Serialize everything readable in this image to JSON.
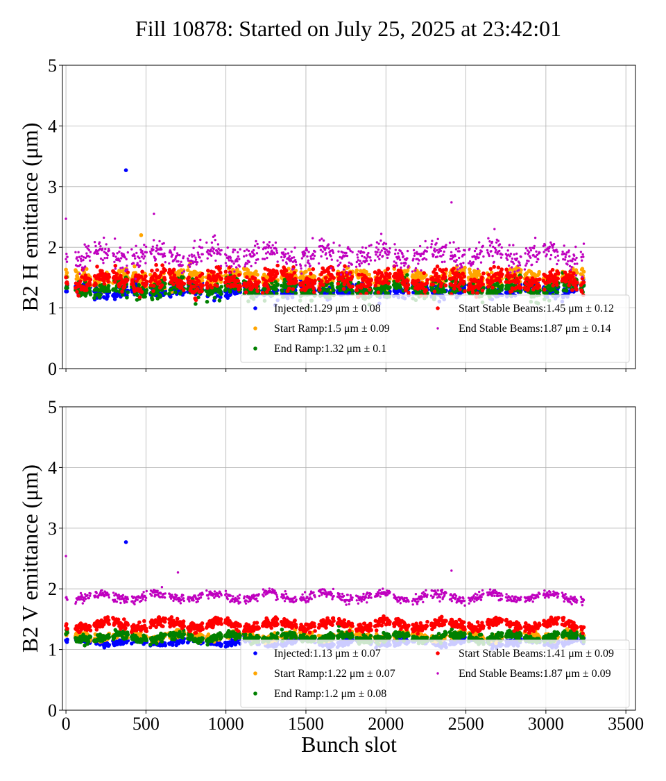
{
  "title": "Fill 10878: Started on July 25, 2025 at 23:42:01",
  "chart_data": [
    {
      "type": "scatter",
      "ylabel": "B2 H emittance (μm)",
      "xlabel": "",
      "xlim": [
        -22,
        3560
      ],
      "ylim": [
        0,
        5
      ],
      "xticks": [
        0,
        500,
        1000,
        1500,
        2000,
        2500,
        3000,
        3500
      ],
      "yticks": [
        0,
        1,
        2,
        3,
        4,
        5
      ],
      "grid": true,
      "legend_position": "lower-right",
      "bunch_slot_range": [
        0,
        3240
      ],
      "series": [
        {
          "name": "Injected",
          "legend": "Injected:1.29 μm ± 0.08",
          "mean": 1.29,
          "std": 0.08,
          "color": "#0000ff",
          "outliers": [
            [
              375,
              3.27
            ]
          ]
        },
        {
          "name": "Start Ramp",
          "legend": "Start Ramp:1.5 μm ± 0.09",
          "mean": 1.5,
          "std": 0.09,
          "color": "#ffa500",
          "outliers": [
            [
              470,
              2.2
            ]
          ]
        },
        {
          "name": "End Ramp",
          "legend": "End Ramp:1.32 μm ± 0.1",
          "mean": 1.32,
          "std": 0.1,
          "color": "#008000",
          "outliers": []
        },
        {
          "name": "Start Stable Beams",
          "legend": "Start Stable Beams:1.45 μm ± 0.12",
          "mean": 1.45,
          "std": 0.12,
          "color": "#ff0000",
          "outliers": []
        },
        {
          "name": "End Stable Beams",
          "legend": "End Stable Beams:1.87 μm ± 0.14",
          "mean": 1.87,
          "std": 0.14,
          "color": "#bf00bf",
          "outliers": [
            [
              0,
              2.47
            ],
            [
              2410,
              2.74
            ],
            [
              550,
              2.55
            ]
          ]
        }
      ]
    },
    {
      "type": "scatter",
      "ylabel": "B2 V emittance (μm)",
      "xlabel": "Bunch slot",
      "xlim": [
        -22,
        3560
      ],
      "ylim": [
        0,
        5
      ],
      "xticks": [
        0,
        500,
        1000,
        1500,
        2000,
        2500,
        3000,
        3500
      ],
      "yticks": [
        0,
        1,
        2,
        3,
        4,
        5
      ],
      "grid": true,
      "legend_position": "lower-right",
      "bunch_slot_range": [
        0,
        3240
      ],
      "series": [
        {
          "name": "Injected",
          "legend": "Injected:1.13 μm ± 0.07",
          "mean": 1.13,
          "std": 0.07,
          "color": "#0000ff",
          "outliers": [
            [
              375,
              2.77
            ]
          ]
        },
        {
          "name": "Start Ramp",
          "legend": "Start Ramp:1.22 μm ± 0.07",
          "mean": 1.22,
          "std": 0.07,
          "color": "#ffa500",
          "outliers": []
        },
        {
          "name": "End Ramp",
          "legend": "End Ramp:1.2 μm ± 0.08",
          "mean": 1.2,
          "std": 0.08,
          "color": "#008000",
          "outliers": []
        },
        {
          "name": "Start Stable Beams",
          "legend": "Start Stable Beams:1.41 μm ± 0.09",
          "mean": 1.41,
          "std": 0.09,
          "color": "#ff0000",
          "outliers": []
        },
        {
          "name": "End Stable Beams",
          "legend": "End Stable Beams:1.87 μm ± 0.09",
          "mean": 1.87,
          "std": 0.09,
          "color": "#bf00bf",
          "outliers": [
            [
              0,
              2.54
            ],
            [
              2410,
              2.3
            ],
            [
              700,
              2.27
            ]
          ]
        }
      ]
    }
  ]
}
